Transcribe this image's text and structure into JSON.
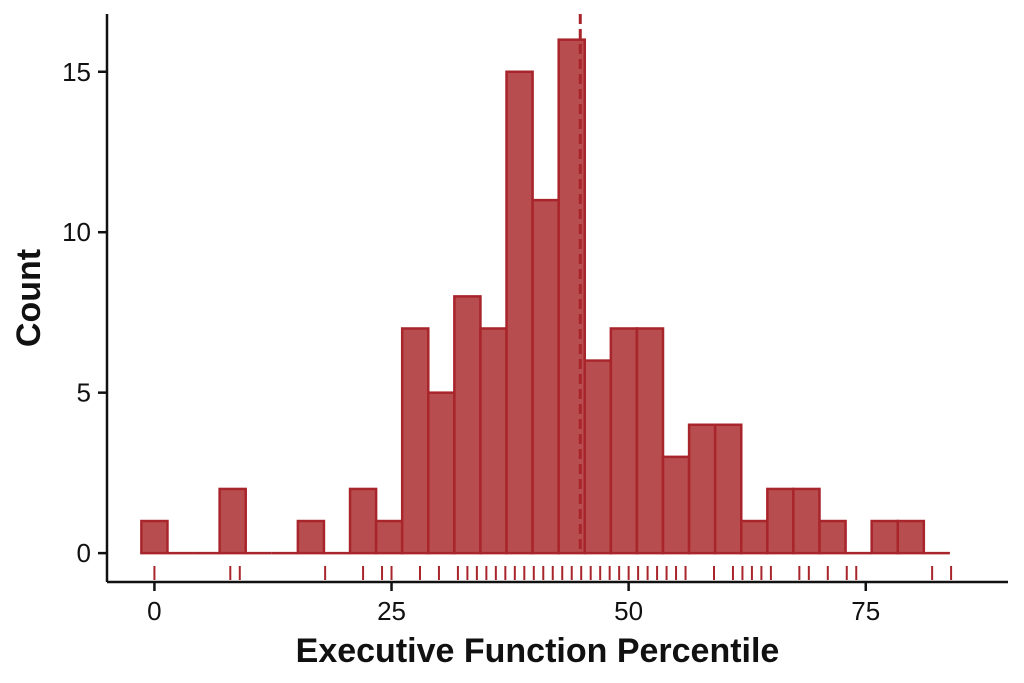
{
  "chart_data": {
    "type": "bar",
    "title": "",
    "xlabel": "Executive Function Percentile",
    "ylabel": "Count",
    "xlim": [
      -5,
      90
    ],
    "ylim": [
      -0.9,
      16.8
    ],
    "bin_width": 2.75,
    "bin_centers": [
      0,
      2.75,
      5.5,
      8.25,
      11,
      13.75,
      16.5,
      19.25,
      22,
      24.75,
      27.5,
      30.25,
      33,
      35.75,
      38.5,
      41.25,
      44,
      46.75,
      49.5,
      52.25,
      55,
      57.75,
      60.5,
      63.25,
      66,
      68.75,
      71.5,
      74.25,
      77,
      79.75,
      82.5
    ],
    "counts": [
      1,
      0,
      0,
      2,
      0,
      0,
      1,
      0,
      2,
      1,
      7,
      5,
      8,
      7,
      15,
      11,
      16,
      6,
      7,
      7,
      3,
      4,
      4,
      1,
      2,
      2,
      1,
      0,
      1,
      1,
      0
    ],
    "mean_line": 44.9,
    "rug": [
      0,
      8,
      9,
      18,
      22,
      24,
      25,
      28,
      30,
      32,
      33,
      34,
      35,
      36,
      37,
      38,
      39,
      40,
      41,
      42,
      43,
      44,
      45,
      46,
      47,
      48,
      49,
      50,
      51,
      52,
      53,
      54,
      55,
      56,
      59,
      61,
      62,
      63,
      64,
      65,
      68,
      69,
      71,
      73,
      74,
      82,
      84
    ],
    "x_ticks": [
      0,
      25,
      50,
      75
    ],
    "x_tick_labels": [
      "0",
      "25",
      "50",
      "75"
    ],
    "y_ticks": [
      0,
      5,
      10,
      15
    ],
    "y_tick_labels": [
      "0",
      "5",
      "10",
      "15"
    ],
    "grid": false,
    "colors": {
      "bar_fill": "#b84d4f",
      "bar_stroke": "#a8252b",
      "mean_line": "#a8252b",
      "rug": "#a8252b",
      "axis": "#111111"
    }
  }
}
